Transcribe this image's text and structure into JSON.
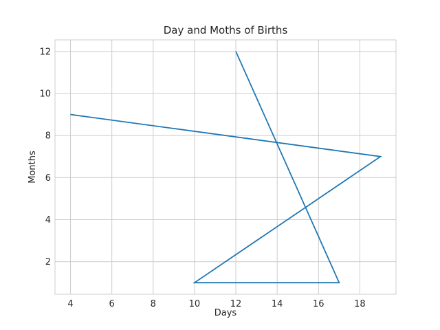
{
  "chart_data": {
    "type": "line",
    "title": "Day and Moths of Births",
    "xlabel": "Days",
    "ylabel": "Months",
    "xlim": [
      3.25,
      19.75
    ],
    "ylim": [
      0.45,
      12.55
    ],
    "xticks": [
      4,
      6,
      8,
      10,
      12,
      14,
      16,
      18
    ],
    "yticks": [
      2,
      4,
      6,
      8,
      10,
      12
    ],
    "grid": true,
    "series": [
      {
        "x": [
          4,
          19,
          10,
          17,
          12
        ],
        "y": [
          9,
          7,
          1,
          1,
          12
        ],
        "color": "#1f77b4"
      }
    ]
  }
}
